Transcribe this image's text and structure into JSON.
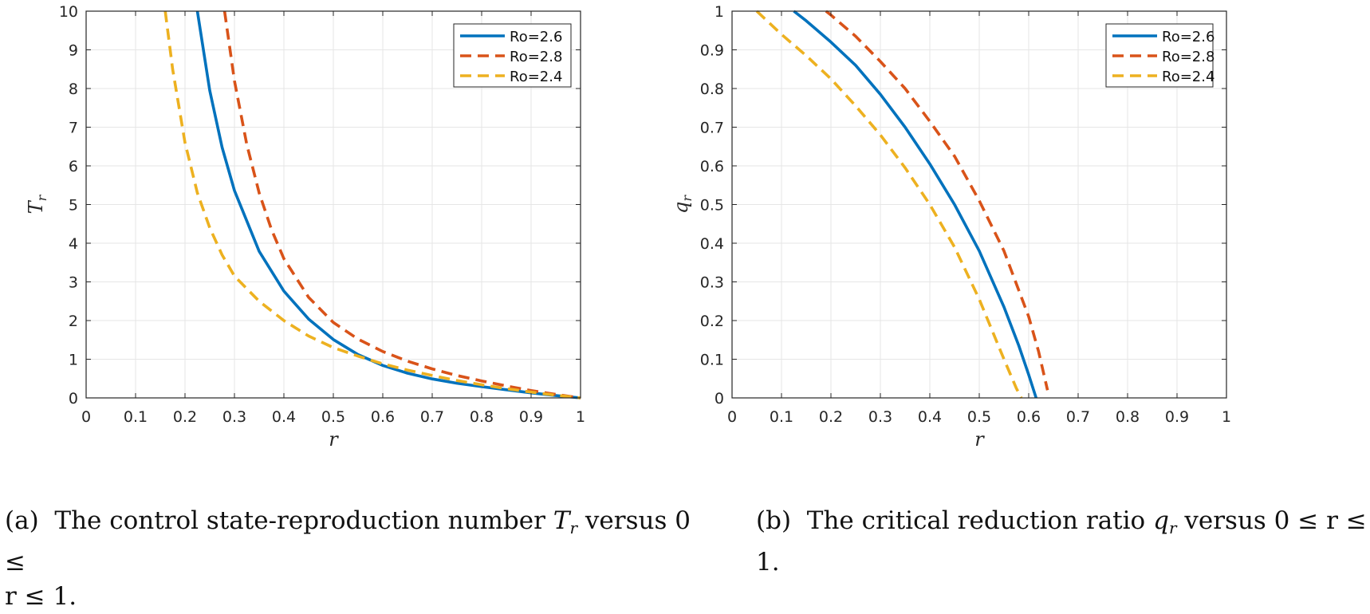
{
  "chart_data": [
    {
      "type": "line",
      "title": "",
      "xlabel": "r",
      "ylabel_main": "T",
      "ylabel_sub": "r",
      "xlim": [
        0,
        1
      ],
      "ylim": [
        0,
        10
      ],
      "grid": true,
      "legend_position": "top-right",
      "x_ticks": [
        0,
        0.1,
        0.2,
        0.3,
        0.4,
        0.5,
        0.6,
        0.7,
        0.8,
        0.9,
        1
      ],
      "x_tick_labels": [
        "0",
        "0.1",
        "0.2",
        "0.3",
        "0.4",
        "0.5",
        "0.6",
        "0.7",
        "0.8",
        "0.9",
        "1"
      ],
      "y_ticks": [
        0,
        1,
        2,
        3,
        4,
        5,
        6,
        7,
        8,
        9,
        10
      ],
      "y_tick_labels": [
        "0",
        "1",
        "2",
        "3",
        "4",
        "5",
        "6",
        "7",
        "8",
        "9",
        "10"
      ],
      "series": [
        {
          "name": "Ro=2.6",
          "color": "#0072BD",
          "dash": "solid",
          "x": [
            0.225,
            0.25,
            0.275,
            0.3,
            0.35,
            0.4,
            0.45,
            0.5,
            0.55,
            0.6,
            0.65,
            0.7,
            0.75,
            0.8,
            0.85,
            0.9,
            0.95,
            1.0
          ],
          "y": [
            10.0,
            7.95,
            6.48,
            5.36,
            3.79,
            2.76,
            2.04,
            1.51,
            1.12,
            0.84,
            0.64,
            0.49,
            0.38,
            0.29,
            0.21,
            0.13,
            0.06,
            0.0
          ]
        },
        {
          "name": "Ro=2.8",
          "color": "#D95319",
          "dash": "dashed",
          "x": [
            0.28,
            0.3,
            0.325,
            0.35,
            0.375,
            0.4,
            0.45,
            0.5,
            0.55,
            0.6,
            0.65,
            0.7,
            0.75,
            0.8,
            0.85,
            0.9,
            0.95,
            1.0
          ],
          "y": [
            10.0,
            8.2,
            6.55,
            5.3,
            4.35,
            3.6,
            2.6,
            1.95,
            1.52,
            1.2,
            0.95,
            0.75,
            0.58,
            0.44,
            0.31,
            0.19,
            0.09,
            0.0
          ]
        },
        {
          "name": "Ro=2.4",
          "color": "#EDB120",
          "dash": "dashed",
          "x": [
            0.16,
            0.175,
            0.2,
            0.225,
            0.25,
            0.275,
            0.3,
            0.35,
            0.4,
            0.45,
            0.5,
            0.55,
            0.6,
            0.65,
            0.7,
            0.75,
            0.8,
            0.85,
            0.9,
            0.95,
            1.0
          ],
          "y": [
            10.0,
            8.5,
            6.6,
            5.3,
            4.4,
            3.7,
            3.15,
            2.5,
            2.0,
            1.6,
            1.3,
            1.08,
            0.88,
            0.72,
            0.58,
            0.45,
            0.34,
            0.24,
            0.15,
            0.07,
            0.0
          ]
        }
      ]
    },
    {
      "type": "line",
      "title": "",
      "xlabel": "r",
      "ylabel_main": "q",
      "ylabel_sub": "r",
      "xlim": [
        0,
        1
      ],
      "ylim": [
        0,
        1
      ],
      "grid": true,
      "legend_position": "top-right",
      "x_ticks": [
        0,
        0.1,
        0.2,
        0.3,
        0.4,
        0.5,
        0.6,
        0.7,
        0.8,
        0.9,
        1
      ],
      "x_tick_labels": [
        "0",
        "0.1",
        "0.2",
        "0.3",
        "0.4",
        "0.5",
        "0.6",
        "0.7",
        "0.8",
        "0.9",
        "1"
      ],
      "y_ticks": [
        0,
        0.1,
        0.2,
        0.3,
        0.4,
        0.5,
        0.6,
        0.7,
        0.8,
        0.9,
        1
      ],
      "y_tick_labels": [
        "0",
        "0.1",
        "0.2",
        "0.3",
        "0.4",
        "0.5",
        "0.6",
        "0.7",
        "0.8",
        "0.9",
        "1"
      ],
      "series": [
        {
          "name": "Ro=2.6",
          "color": "#0072BD",
          "dash": "solid",
          "x": [
            0.125,
            0.15,
            0.2,
            0.25,
            0.3,
            0.35,
            0.4,
            0.45,
            0.5,
            0.55,
            0.58,
            0.6,
            0.615
          ],
          "y": [
            1.0,
            0.975,
            0.92,
            0.86,
            0.785,
            0.7,
            0.605,
            0.5,
            0.38,
            0.235,
            0.135,
            0.06,
            0.0
          ]
        },
        {
          "name": "Ro=2.8",
          "color": "#D95319",
          "dash": "dashed",
          "x": [
            0.19,
            0.2,
            0.25,
            0.3,
            0.35,
            0.4,
            0.45,
            0.5,
            0.55,
            0.6,
            0.62,
            0.638
          ],
          "y": [
            1.0,
            0.99,
            0.935,
            0.87,
            0.8,
            0.715,
            0.625,
            0.51,
            0.38,
            0.21,
            0.12,
            0.02
          ]
        },
        {
          "name": "Ro=2.4",
          "color": "#EDB120",
          "dash": "dashed",
          "x": [
            0.05,
            0.1,
            0.15,
            0.2,
            0.25,
            0.3,
            0.35,
            0.4,
            0.45,
            0.5,
            0.55,
            0.575,
            0.585
          ],
          "y": [
            1.0,
            0.94,
            0.885,
            0.825,
            0.755,
            0.68,
            0.595,
            0.5,
            0.39,
            0.255,
            0.1,
            0.025,
            0.0
          ]
        }
      ]
    }
  ],
  "captions": [
    {
      "label": "(a)",
      "text_before": "The control state-reproduction number",
      "symbol": "T",
      "symbol_sub": "r",
      "text_after": "versus 0 ≤",
      "line2": "r ≤ 1."
    },
    {
      "label": "(b)",
      "text_before": "The critical reduction ratio",
      "symbol": "q",
      "symbol_sub": "r",
      "text_after": "versus 0 ≤ r ≤ 1."
    }
  ]
}
